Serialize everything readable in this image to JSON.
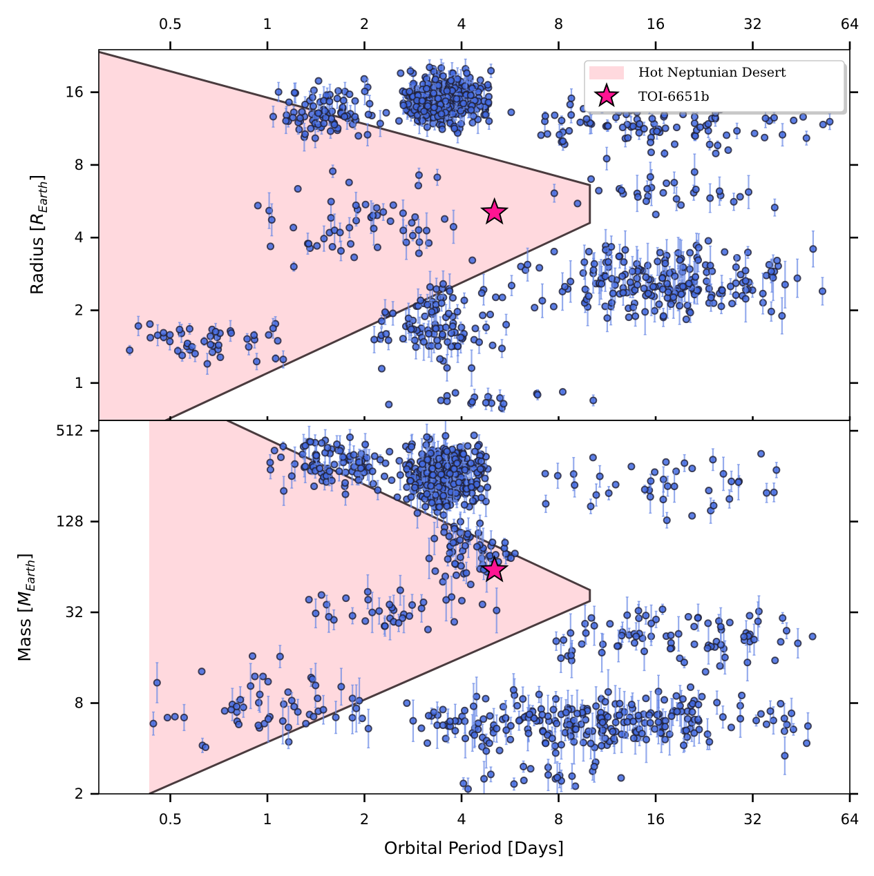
{
  "chart_data": {
    "type": "scatter",
    "xlabel": "Orbital Period [Days]",
    "x_scale": "log2",
    "xlim": [
      0.3,
      64
    ],
    "x_ticks": [
      0.5,
      1,
      2,
      4,
      8,
      16,
      32,
      64
    ],
    "x_tick_labels": [
      "0.5",
      "1",
      "2",
      "4",
      "8",
      "16",
      "32",
      "64"
    ],
    "legend": {
      "placement": "top-right of upper panel",
      "entries": [
        {
          "label": "Hot Neptunian Desert",
          "kind": "desert-patch"
        },
        {
          "label": "TOI-6651b",
          "kind": "star-marker"
        }
      ]
    },
    "colors": {
      "desert_fill": "#ffd9de",
      "desert_edge": "#4a3b3e",
      "points": "#4169e1",
      "point_edge": "#1f1f33",
      "errorbars": "#6a8ae6",
      "star": "#ff1493"
    },
    "panels": [
      {
        "id": "radius",
        "ylabel": "Radius [R_Earth]",
        "y_scale": "log2",
        "ylim": [
          0.7,
          24
        ],
        "y_ticks": [
          1,
          2,
          4,
          8,
          16
        ],
        "y_tick_labels": [
          "1",
          "2",
          "4",
          "8",
          "16"
        ],
        "desert_boundary": {
          "upper_vertex": [
            10,
            6.6
          ],
          "lower_vertex": [
            10,
            4.6
          ],
          "upper_left": [
            0.3,
            23.5
          ],
          "lower_left": [
            0.3,
            0.52
          ]
        },
        "highlight": {
          "name": "TOI-6651b",
          "period": 5.06,
          "value": 5.09
        },
        "clusters": [
          {
            "n": 380,
            "period_range": [
              2.5,
              5.0
            ],
            "value_range": [
              10,
              22
            ],
            "err": 0.15
          },
          {
            "n": 90,
            "period_range": [
              1.0,
              2.5
            ],
            "value_range": [
              9,
              20
            ],
            "err": 0.15
          },
          {
            "n": 110,
            "period_range": [
              5.0,
              60
            ],
            "value_range": [
              8,
              18
            ],
            "err": 0.12
          },
          {
            "n": 200,
            "period_range": [
              5.5,
              55
            ],
            "value_range": [
              1.5,
              4.5
            ],
            "err": 0.25
          },
          {
            "n": 100,
            "period_range": [
              2.0,
              6.0
            ],
            "value_range": [
              1.0,
              3.0
            ],
            "err": 0.2
          },
          {
            "n": 45,
            "period_range": [
              0.35,
              1.3
            ],
            "value_range": [
              1.1,
              1.9
            ],
            "err": 0.12
          },
          {
            "n": 55,
            "period_range": [
              0.8,
              4.5
            ],
            "value_range": [
              2.5,
              8
            ],
            "err": 0.2
          },
          {
            "n": 30,
            "period_range": [
              6.0,
              50
            ],
            "value_range": [
              4.5,
              8
            ],
            "err": 0.2
          },
          {
            "n": 18,
            "period_range": [
              2.0,
              12
            ],
            "value_range": [
              0.75,
              1.0
            ],
            "err": 0.1
          }
        ]
      },
      {
        "id": "mass",
        "ylabel": "Mass [M_Earth]",
        "y_scale": "log2",
        "ylim": [
          2,
          600
        ],
        "y_ticks": [
          2,
          8,
          32,
          128,
          512
        ],
        "y_tick_labels": [
          "2",
          "8",
          "32",
          "128",
          "512"
        ],
        "desert_boundary": {
          "upper_vertex": [
            10,
            45
          ],
          "lower_vertex": [
            10,
            38
          ],
          "upper_left": [
            0.75,
            600
          ],
          "lower_left": [
            0.43,
            2
          ]
        },
        "highlight": {
          "name": "TOI-6651b",
          "period": 5.06,
          "value": 61
        },
        "clusters": [
          {
            "n": 330,
            "period_range": [
              2.5,
              5.0
            ],
            "value_range": [
              120,
              550
            ],
            "err": 0.3
          },
          {
            "n": 90,
            "period_range": [
              1.0,
              2.5
            ],
            "value_range": [
              150,
              600
            ],
            "err": 0.3
          },
          {
            "n": 60,
            "period_range": [
              3.0,
              6.0
            ],
            "value_range": [
              45,
              140
            ],
            "err": 0.35
          },
          {
            "n": 240,
            "period_range": [
              2.2,
              55
            ],
            "value_range": [
              3,
              12
            ],
            "err": 0.4
          },
          {
            "n": 80,
            "period_range": [
              5.5,
              55
            ],
            "value_range": [
              12,
              40
            ],
            "err": 0.35
          },
          {
            "n": 40,
            "period_range": [
              5.5,
              50
            ],
            "value_range": [
              100,
              560
            ],
            "err": 0.3
          },
          {
            "n": 55,
            "period_range": [
              0.4,
              2.5
            ],
            "value_range": [
              3,
              20
            ],
            "err": 0.4
          },
          {
            "n": 35,
            "period_range": [
              1.2,
              5.5
            ],
            "value_range": [
              20,
              60
            ],
            "err": 0.4
          },
          {
            "n": 20,
            "period_range": [
              3.0,
              16
            ],
            "value_range": [
              2,
              3.5
            ],
            "err": 0.3
          }
        ]
      }
    ]
  },
  "labels": {
    "xlabel": "Orbital Period [Days]",
    "radius_ylabel_main": "Radius [",
    "radius_ylabel_sym": "R",
    "radius_ylabel_sub": "Earth",
    "radius_ylabel_end": "]",
    "mass_ylabel_main": "Mass [",
    "mass_ylabel_sym": "M",
    "mass_ylabel_sub": "Earth",
    "mass_ylabel_end": "]",
    "legend_desert": "Hot Neptunian Desert",
    "legend_star": "TOI-6651b"
  }
}
